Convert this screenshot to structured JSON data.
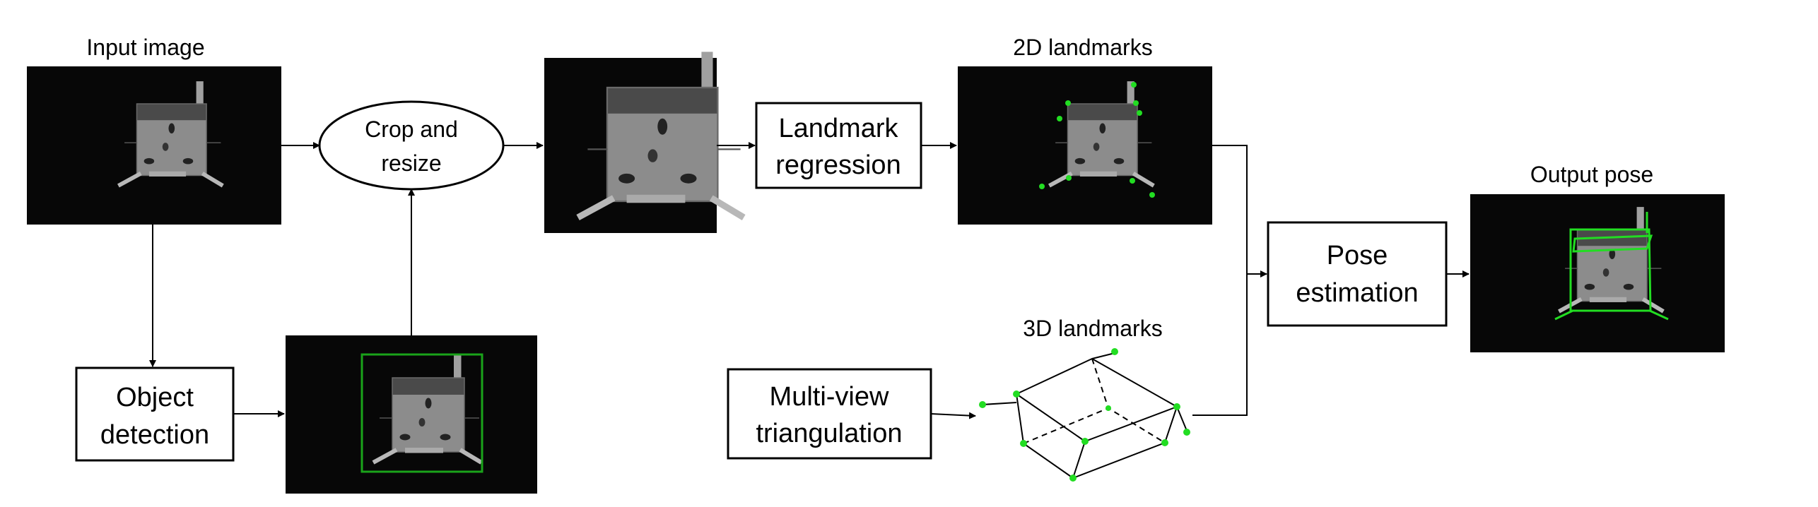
{
  "labels": {
    "input_image": "Input image",
    "two_d_landmarks": "2D landmarks",
    "three_d_landmarks": "3D landmarks",
    "output_pose": "Output pose"
  },
  "boxes": {
    "crop_resize": [
      "Crop and",
      "resize"
    ],
    "landmark_regression": [
      "Landmark",
      "regression"
    ],
    "object_detection": [
      "Object",
      "detection"
    ],
    "multiview_triangulation": [
      "Multi-view",
      "triangulation"
    ],
    "pose_estimation": [
      "Pose",
      "estimation"
    ]
  },
  "colors": {
    "image_bg": "#070707",
    "satellite_body": "#8c8c8c",
    "satellite_top": "#4a4a4a",
    "landmark_green": "#22dd22",
    "bbox_green": "#1aa31a"
  }
}
